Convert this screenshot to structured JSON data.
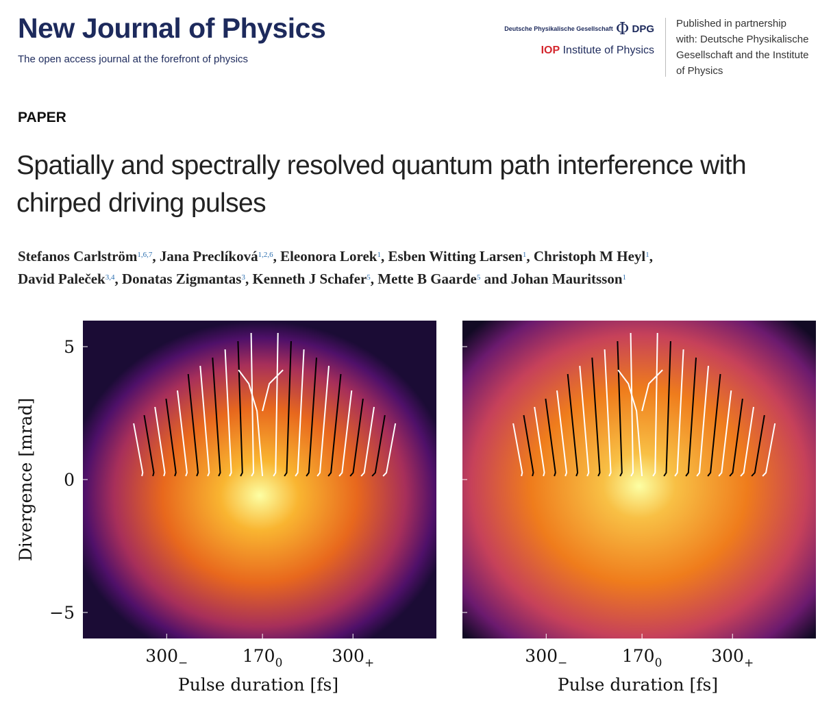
{
  "header": {
    "journal": "New Journal of Physics",
    "tagline": "The open access journal at the forefront of  physics",
    "dpg_full": "Deutsche Physikalische Gesellschaft",
    "dpg_symbol": "Φ",
    "dpg": "DPG",
    "iop": "IOP",
    "iop_name": "Institute of Physics",
    "partnership": [
      "Published in partnership",
      "with: Deutsche Physikalische",
      "Gesellschaft and the Institute",
      "of Physics"
    ]
  },
  "article": {
    "type": "PAPER",
    "title_lines": [
      "Spatially and spectrally resolved quantum path interference with",
      "chirped driving pulses"
    ],
    "author_lines": [
      [
        {
          "name": "Stefanos Carlström",
          "aff": "1,6,7",
          "after": ","
        },
        {
          "name": "Jana Preclíková",
          "aff": "1,2,6",
          "after": ","
        },
        {
          "name": "Eleonora Lorek",
          "aff": "1",
          "after": ","
        },
        {
          "name": "Esben Witting Larsen",
          "aff": "1",
          "after": ","
        },
        {
          "name": "Christoph M Heyl",
          "aff": "1",
          "after": ","
        }
      ],
      [
        {
          "name": "David Paleček",
          "aff": "3,4",
          "after": ","
        },
        {
          "name": "Donatas Zigmantas",
          "aff": "3",
          "after": ","
        },
        {
          "name": "Kenneth J Schafer",
          "aff": "5",
          "after": ","
        },
        {
          "name": "Mette B Gaarde",
          "aff": "5",
          "after": " and"
        },
        {
          "name": "Johan Mauritsson",
          "aff": "1"
        }
      ]
    ]
  },
  "figure": {
    "panels": [
      {
        "y_label": "Divergence [mrad]",
        "yticks": [
          "5",
          "0",
          "−5"
        ],
        "xticks": [
          {
            "base": "300",
            "sub": "−"
          },
          {
            "base": "170",
            "sub": "0"
          },
          {
            "base": "300",
            "sub": "+"
          }
        ],
        "x_label": "Pulse duration [fs]"
      },
      {
        "xticks": [
          {
            "base": "300",
            "sub": "−"
          },
          {
            "base": "170",
            "sub": "0"
          },
          {
            "base": "300",
            "sub": "+"
          }
        ],
        "x_label": "Pulse duration [fs]"
      }
    ]
  }
}
